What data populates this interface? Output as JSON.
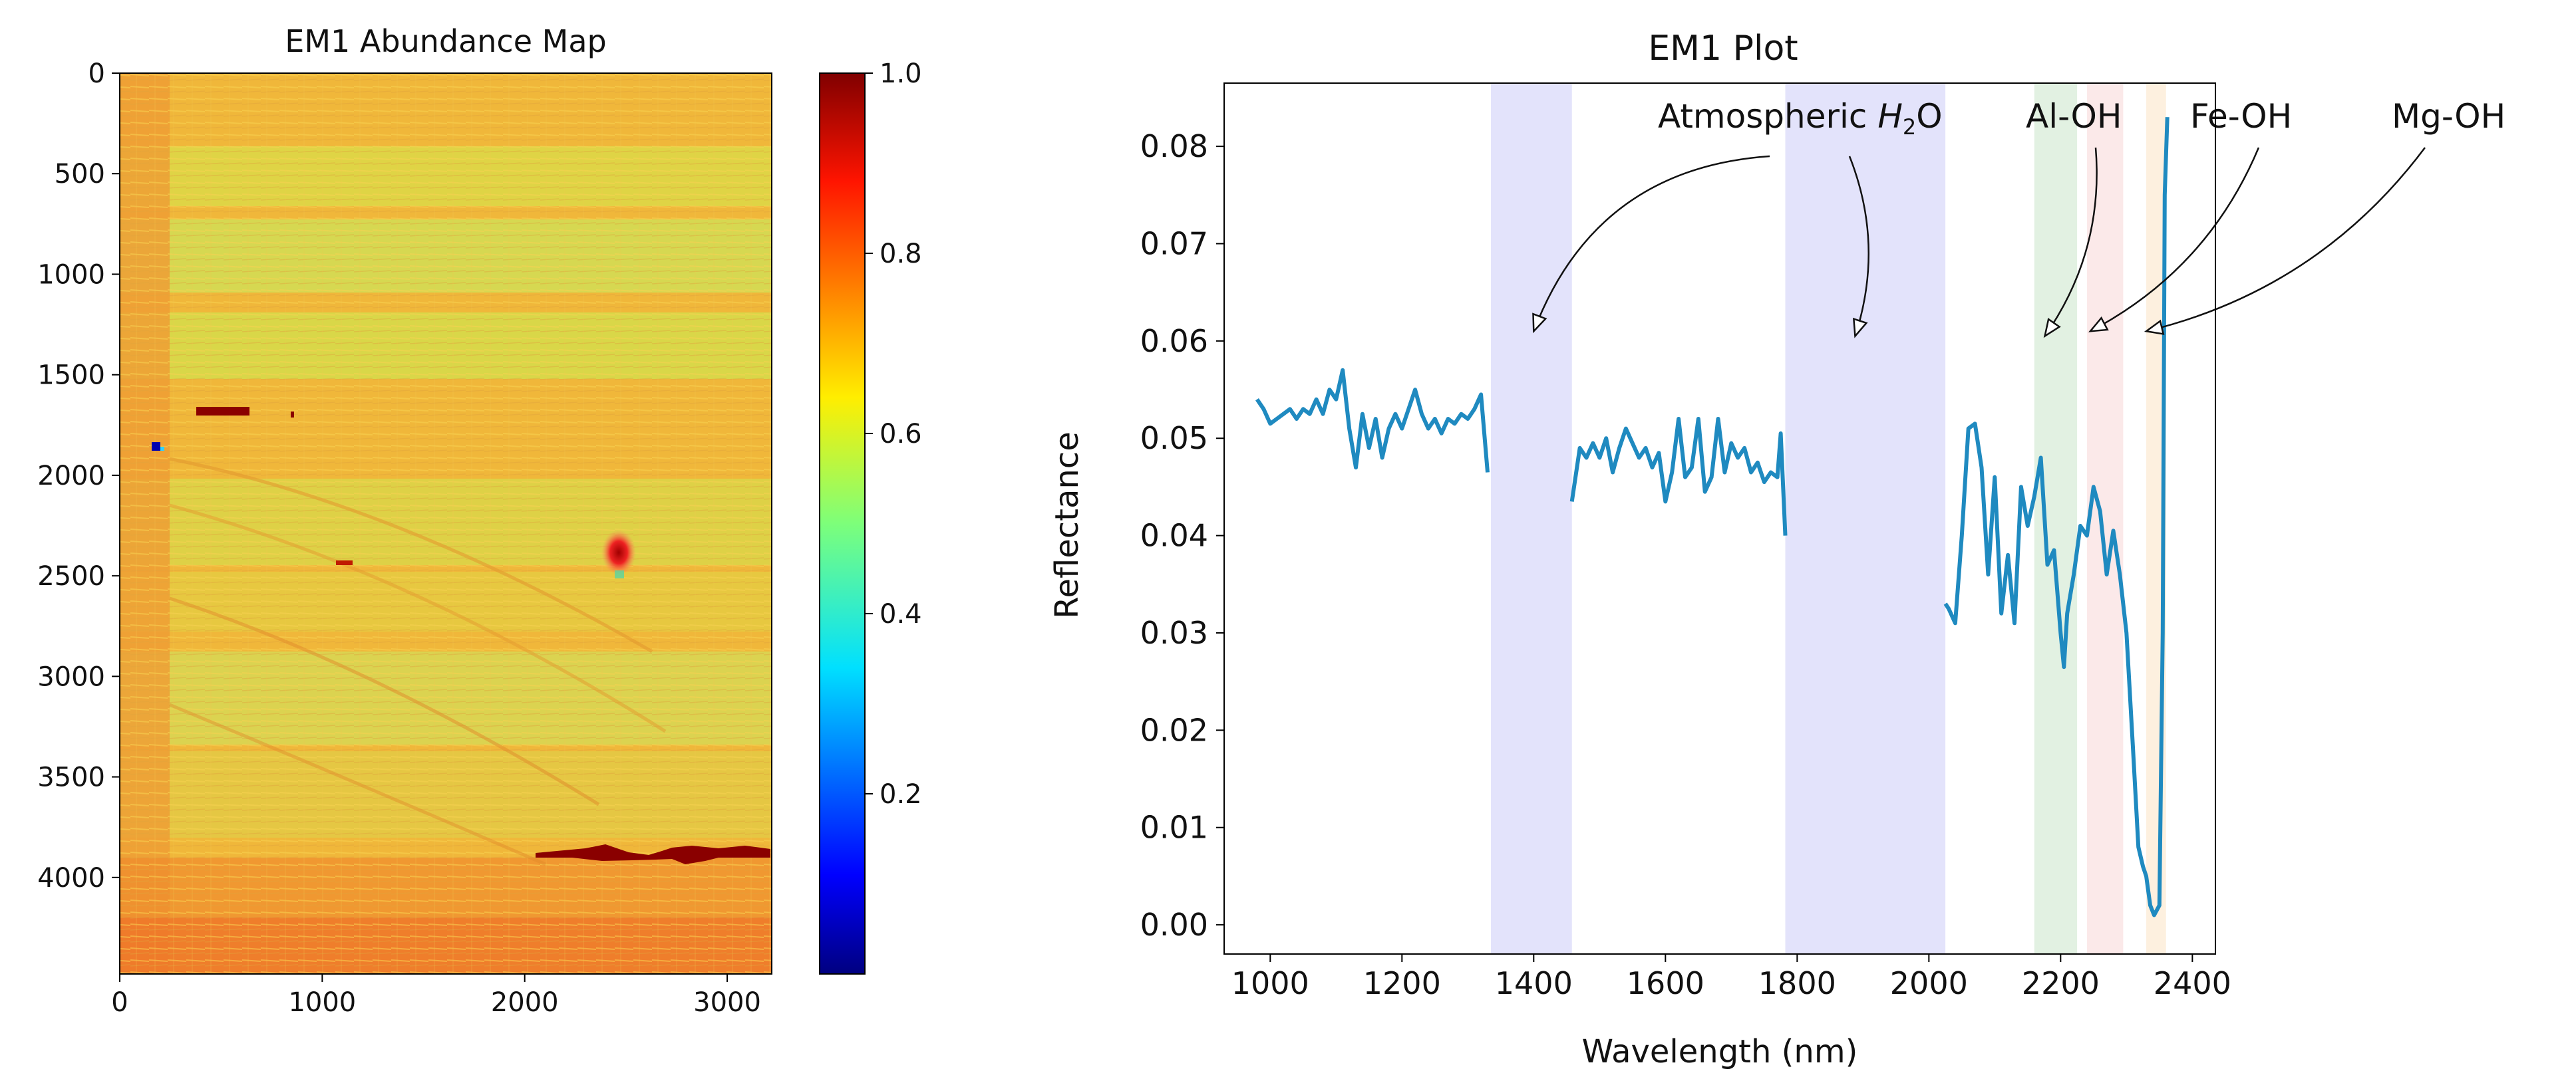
{
  "chart_data": [
    {
      "type": "heatmap",
      "title": "EM1 Abundance Map",
      "xlabel": "",
      "ylabel": "",
      "xlim": [
        0,
        3220
      ],
      "ylim": [
        4480,
        0
      ],
      "x_ticks": [
        "0",
        "1000",
        "2000",
        "3000"
      ],
      "y_ticks": [
        "0",
        "500",
        "1000",
        "1500",
        "2000",
        "2500",
        "3000",
        "3500",
        "4000"
      ],
      "colormap": "jet",
      "colorbar": {
        "range": [
          0.0,
          1.0
        ],
        "ticks": [
          "0.2",
          "0.4",
          "0.6",
          "0.8",
          "1.0"
        ]
      },
      "description_values": {
        "typical_abundance": 0.72
      }
    },
    {
      "type": "line",
      "title": "EM1 Plot",
      "xlabel": "Wavelength (nm)",
      "ylabel": "Reflectance",
      "xlim": [
        930,
        2435
      ],
      "ylim": [
        -0.003,
        0.0865
      ],
      "x_ticks": [
        "1000",
        "1200",
        "1400",
        "1600",
        "1800",
        "2000",
        "2200",
        "2400"
      ],
      "y_ticks": [
        "0.00",
        "0.01",
        "0.02",
        "0.03",
        "0.04",
        "0.05",
        "0.06",
        "0.07",
        "0.08"
      ],
      "line_color": "#1f8ac0",
      "segments": [
        {
          "x": [
            980,
            990,
            1000,
            1010,
            1020,
            1030,
            1040,
            1050,
            1060,
            1070,
            1080,
            1090,
            1100,
            1110,
            1120,
            1130,
            1140,
            1150,
            1160,
            1170,
            1180,
            1190,
            1200,
            1210,
            1220,
            1230,
            1240,
            1250,
            1260,
            1270,
            1280,
            1290,
            1300,
            1310,
            1320,
            1330
          ],
          "y": [
            0.054,
            0.053,
            0.0515,
            0.052,
            0.0525,
            0.053,
            0.052,
            0.053,
            0.0525,
            0.054,
            0.0525,
            0.055,
            0.054,
            0.057,
            0.051,
            0.047,
            0.0525,
            0.049,
            0.052,
            0.048,
            0.051,
            0.0525,
            0.051,
            0.053,
            0.055,
            0.0525,
            0.051,
            0.052,
            0.0505,
            0.052,
            0.0515,
            0.0525,
            0.052,
            0.053,
            0.0545,
            0.0465
          ]
        },
        {
          "x": [
            1458,
            1470,
            1480,
            1490,
            1500,
            1510,
            1520,
            1530,
            1540,
            1550,
            1560,
            1570,
            1580,
            1590,
            1600,
            1610,
            1620,
            1630,
            1640,
            1650,
            1660,
            1670,
            1680,
            1690,
            1700,
            1710,
            1720,
            1730,
            1740,
            1750,
            1760,
            1770,
            1775,
            1782
          ],
          "y": [
            0.0435,
            0.049,
            0.048,
            0.0495,
            0.048,
            0.05,
            0.0465,
            0.049,
            0.051,
            0.0495,
            0.048,
            0.049,
            0.047,
            0.0485,
            0.0435,
            0.0465,
            0.052,
            0.046,
            0.047,
            0.052,
            0.0445,
            0.046,
            0.052,
            0.0465,
            0.0495,
            0.048,
            0.049,
            0.0465,
            0.0475,
            0.0455,
            0.0465,
            0.046,
            0.0505,
            0.04
          ]
        },
        {
          "x": [
            2025,
            2030,
            2040,
            2050,
            2060,
            2070,
            2080,
            2090,
            2100,
            2110,
            2120,
            2130,
            2140,
            2150,
            2160,
            2170,
            2180,
            2190,
            2200,
            2205,
            2210,
            2220,
            2230,
            2240,
            2250,
            2260,
            2270,
            2280,
            2290,
            2300,
            2310,
            2318,
            2325,
            2330,
            2336,
            2342,
            2350,
            2355,
            2358,
            2362
          ],
          "y": [
            0.033,
            0.0325,
            0.031,
            0.04,
            0.051,
            0.0515,
            0.047,
            0.036,
            0.046,
            0.032,
            0.038,
            0.031,
            0.045,
            0.041,
            0.044,
            0.048,
            0.037,
            0.0385,
            0.03,
            0.0265,
            0.032,
            0.036,
            0.041,
            0.04,
            0.045,
            0.0425,
            0.036,
            0.0405,
            0.036,
            0.03,
            0.018,
            0.008,
            0.006,
            0.005,
            0.002,
            0.001,
            0.002,
            0.03,
            0.075,
            0.083
          ]
        }
      ],
      "bands": [
        {
          "x0": 1335,
          "x1": 1458,
          "color": "#e3e3fb"
        },
        {
          "x0": 1782,
          "x1": 2025,
          "color": "#e3e3fb"
        },
        {
          "x0": 2160,
          "x1": 2225,
          "color": "#e2f1e2"
        },
        {
          "x0": 2240,
          "x1": 2295,
          "color": "#fbe9e9"
        },
        {
          "x0": 2330,
          "x1": 2360,
          "color": "#fdf0df"
        }
      ],
      "annotations": [
        {
          "text_parts": [
            "Atmospheric ",
            "H",
            "2",
            "O"
          ],
          "anchor": "Atmospheric H2O",
          "targets": [
            [
              1400,
              0.061
            ],
            [
              1888,
              0.0605
            ]
          ]
        },
        {
          "text": "Al-OH",
          "targets": [
            [
              2176,
              0.0605
            ]
          ]
        },
        {
          "text": "Fe-OH",
          "targets": [
            [
              2245,
              0.061
            ]
          ]
        },
        {
          "text": "Mg-OH",
          "targets": [
            [
              2330,
              0.061
            ]
          ]
        }
      ]
    }
  ]
}
